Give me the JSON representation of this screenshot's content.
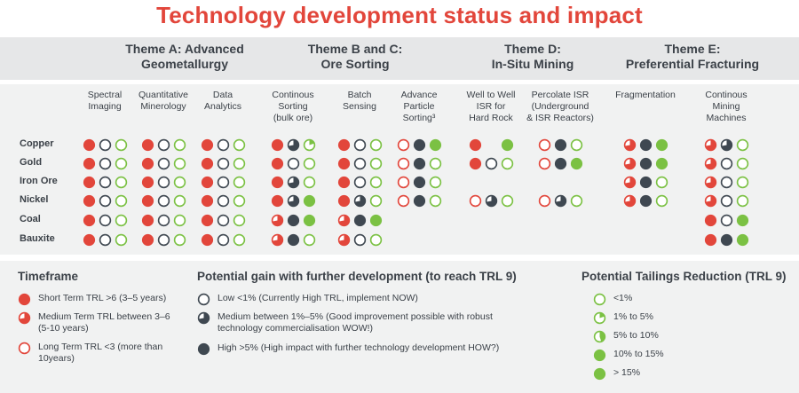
{
  "title": "Technology development status and impact",
  "colors": {
    "red": "#e2463b",
    "green": "#7bc143",
    "dark": "#3f4851"
  },
  "themes": [
    "Theme A: Advanced\nGeometallurgy",
    "Theme B and C:\nOre Sorting",
    "Theme D:\nIn-Situ Mining",
    "Theme E:\nPreferential Fracturing"
  ],
  "columns": [
    "Spectral\nImaging",
    "Quantitative\nMinerology",
    "Data\nAnalytics",
    "Continous\nSorting\n(bulk ore)",
    "Batch\nSensing",
    "Advance\nParticle\nSorting³",
    "Well to Well\nISR for\nHard Rock",
    "Percolate ISR\n(Underground\n& ISR Reactors)",
    "Fragmentation",
    "Continous\nMining\nMachines"
  ],
  "rows": [
    "Copper",
    "Gold",
    "Iron Ore",
    "Nickel",
    "Coal",
    "Bauxite"
  ],
  "matrix": [
    [
      [
        "S",
        "L",
        "O1"
      ],
      [
        "S",
        "L",
        "O1"
      ],
      [
        "S",
        "L",
        "O1"
      ],
      [
        "S",
        "M",
        "O5"
      ],
      [
        "S",
        "L",
        "O1"
      ],
      [
        "L",
        "H",
        "F15"
      ],
      [
        "S",
        "",
        "F15"
      ],
      [
        "L",
        "H",
        "O1"
      ],
      [
        "M",
        "H",
        "F15"
      ],
      [
        "M",
        "M",
        "O1"
      ]
    ],
    [
      [
        "S",
        "L",
        "O1"
      ],
      [
        "S",
        "L",
        "O1"
      ],
      [
        "S",
        "L",
        "O1"
      ],
      [
        "S",
        "L",
        "O1"
      ],
      [
        "S",
        "L",
        "O1"
      ],
      [
        "L",
        "H",
        "O1"
      ],
      [
        "S",
        "L",
        "O1"
      ],
      [
        "L",
        "H",
        "F15"
      ],
      [
        "M",
        "H",
        "F15"
      ],
      [
        "M",
        "L",
        "O1"
      ]
    ],
    [
      [
        "S",
        "L",
        "O1"
      ],
      [
        "S",
        "L",
        "O1"
      ],
      [
        "S",
        "L",
        "O1"
      ],
      [
        "S",
        "M",
        "O1"
      ],
      [
        "S",
        "L",
        "O1"
      ],
      [
        "L",
        "H",
        "O1"
      ],
      [
        "",
        "",
        ""
      ],
      [
        "",
        "",
        ""
      ],
      [
        "M",
        "H",
        "O1"
      ],
      [
        "M",
        "L",
        "O1"
      ]
    ],
    [
      [
        "S",
        "L",
        "O1"
      ],
      [
        "S",
        "L",
        "O1"
      ],
      [
        "S",
        "L",
        "O1"
      ],
      [
        "S",
        "M",
        "F15"
      ],
      [
        "S",
        "M",
        "O1"
      ],
      [
        "L",
        "H",
        "O1"
      ],
      [
        "L",
        "M",
        "O1"
      ],
      [
        "L",
        "M",
        "O1"
      ],
      [
        "M",
        "H",
        "O1"
      ],
      [
        "M",
        "L",
        "O1"
      ]
    ],
    [
      [
        "S",
        "L",
        "O1"
      ],
      [
        "S",
        "L",
        "O1"
      ],
      [
        "S",
        "L",
        "O1"
      ],
      [
        "M",
        "H",
        "F15"
      ],
      [
        "M",
        "H",
        "F15"
      ],
      [
        "",
        "",
        ""
      ],
      [
        "",
        "",
        ""
      ],
      [
        "",
        "",
        ""
      ],
      [
        "",
        "",
        ""
      ],
      [
        "S",
        "L",
        "F15"
      ]
    ],
    [
      [
        "S",
        "L",
        "O1"
      ],
      [
        "S",
        "L",
        "O1"
      ],
      [
        "S",
        "L",
        "O1"
      ],
      [
        "M",
        "H",
        "O1"
      ],
      [
        "M",
        "L",
        "O1"
      ],
      [
        "",
        "",
        ""
      ],
      [
        "",
        "",
        ""
      ],
      [
        "",
        "",
        ""
      ],
      [
        "",
        "",
        ""
      ],
      [
        "S",
        "H",
        "F15"
      ]
    ]
  ],
  "legend": {
    "timeframe": {
      "title": "Timeframe",
      "items": [
        {
          "code": "S",
          "label": "Short Term TRL >6 (3–5 years)"
        },
        {
          "code": "M",
          "label": "Medium Term TRL between 3–6\n(5-10 years)"
        },
        {
          "code": "L",
          "label": "Long Term TRL <3 (more than\n10years)"
        }
      ]
    },
    "gain": {
      "title": "Potential gain with further development (to reach TRL 9)",
      "items": [
        {
          "code": "L",
          "label": "Low <1% (Currently High TRL, implement NOW)"
        },
        {
          "code": "M",
          "label": "Medium between 1%–5% (Good improvement possible with robust\ntechnology commercialisation WOW!)"
        },
        {
          "code": "H",
          "label": "High >5% (High impact with further technology development HOW?)"
        }
      ]
    },
    "tailings": {
      "title": "Potential Tailings Reduction (TRL 9)",
      "items": [
        {
          "code": "O1",
          "label": "<1%"
        },
        {
          "code": "O5",
          "label": "1% to 5%"
        },
        {
          "code": "O10",
          "label": "5% to 10%"
        },
        {
          "code": "F15",
          "label": "10% to 15%"
        },
        {
          "code": "F15P",
          "label": "> 15%"
        }
      ]
    }
  }
}
